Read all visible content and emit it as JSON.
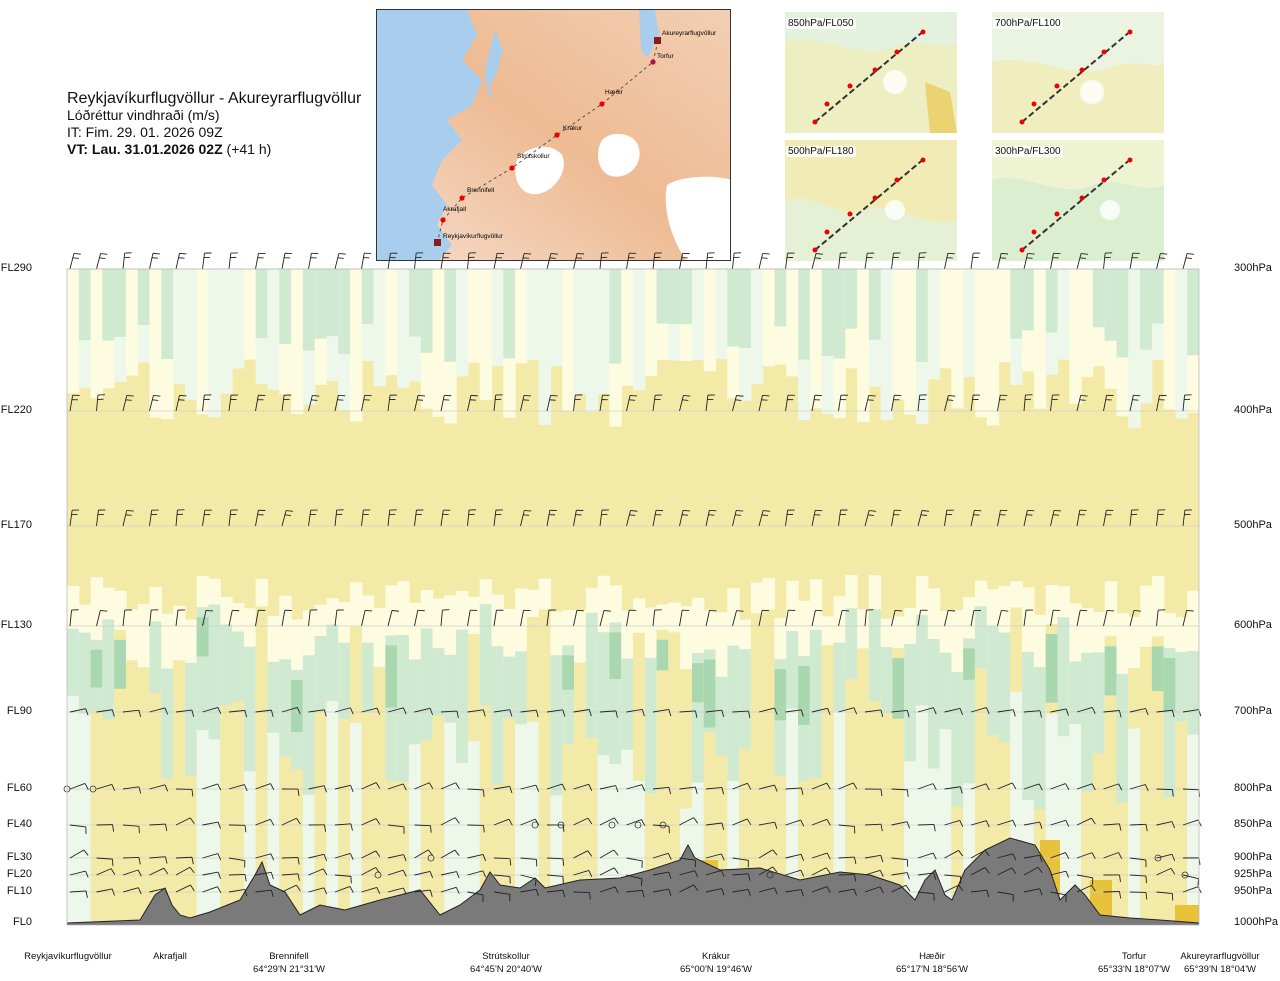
{
  "title": {
    "route": "Reykjavíkurflugvöllur - Akureyrarflugvöllur",
    "subtitle": "Lóðréttur vindhraði (m/s)",
    "it": "IT: Fim. 29. 01. 2026 09Z",
    "vt_bold": "VT: Lau. 31.01.2026 02Z",
    "vt_rest": " (+41 h)"
  },
  "map": {
    "places": [
      {
        "name": "Akureyrarflugvöllur"
      },
      {
        "name": "Torfur"
      },
      {
        "name": "Hæðir"
      },
      {
        "name": "Krákur"
      },
      {
        "name": "Strútskollur"
      },
      {
        "name": "Brennifell"
      },
      {
        "name": "Akrafjall"
      },
      {
        "name": "Reykjavíkurflugvöllur"
      }
    ]
  },
  "mini_maps": [
    {
      "label": "850hPa/FL050"
    },
    {
      "label": "700hPa/FL100"
    },
    {
      "label": "500hPa/FL180"
    },
    {
      "label": "300hPa/FL300"
    }
  ],
  "chart_data": {
    "type": "heatmap",
    "title": "Lóðréttur vindhraði (m/s)",
    "levels": [
      {
        "fl": "FL290",
        "hpa": "300hPa"
      },
      {
        "fl": "FL220",
        "hpa": "400hPa"
      },
      {
        "fl": "FL170",
        "hpa": "500hPa"
      },
      {
        "fl": "FL130",
        "hpa": "600hPa"
      },
      {
        "fl": "FL90",
        "hpa": "700hPa"
      },
      {
        "fl": "FL60",
        "hpa": "800hPa"
      },
      {
        "fl": "FL40",
        "hpa": "850hPa"
      },
      {
        "fl": "FL30",
        "hpa": "900hPa"
      },
      {
        "fl": "FL20",
        "hpa": "925hPa"
      },
      {
        "fl": "FL10",
        "hpa": "950hPa"
      },
      {
        "fl": "FL0",
        "hpa": "1000hPa"
      }
    ],
    "x_locations": [
      {
        "name": "Reykjavíkurflugvöllur",
        "coord": ""
      },
      {
        "name": "Akrafjall",
        "coord": ""
      },
      {
        "name": "Brennifell",
        "coord": "64°29'N 21°31'W"
      },
      {
        "name": "Strútskollur",
        "coord": "64°45'N 20°40'W"
      },
      {
        "name": "Krákur",
        "coord": "65°00'N 19°46'W"
      },
      {
        "name": "Hæðir",
        "coord": "65°17'N 18°56'W"
      },
      {
        "name": "Torfur",
        "coord": "65°33'N 18°07'W"
      },
      {
        "name": "Akureyrarflugvöllur",
        "coord": "65°39'N 18°04'W"
      }
    ],
    "colors": {
      "downdraft": "#f3eaa8",
      "weak": "#fdfbe0",
      "neutral": "#eef8ea",
      "updraft": "#cfead0",
      "updraft_strong": "#a9d7b0",
      "strong_down": "#e8c23a",
      "terrain": "#7a7a7a"
    }
  }
}
